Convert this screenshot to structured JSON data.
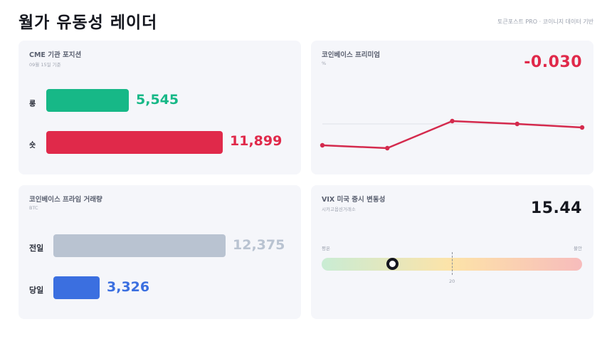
{
  "header": {
    "title": "월가 유동성 레이더",
    "source": "토큰포스트 PRO · 코이니지 데이터 기반"
  },
  "cme": {
    "title": "CME 기관 포지션",
    "date": "09월 15일 기준",
    "max": 12000,
    "rows": [
      {
        "label": "롱",
        "value": 5545,
        "display": "5,545",
        "color": "#17b887"
      },
      {
        "label": "숏",
        "value": 11899,
        "display": "11,899",
        "color": "#e0294a"
      }
    ]
  },
  "premium": {
    "title": "코인베이스 프리미엄",
    "unit": "%",
    "value": "-0.030",
    "color": "#e0294a",
    "line_color": "#d42a4d",
    "series": [
      -0.062,
      -0.066,
      -0.028,
      -0.032,
      -0.037
    ],
    "ylim": [
      -0.075,
      -0.015
    ],
    "zero_ref": -0.033
  },
  "volume": {
    "title": "코인베이스 프라임 거래량",
    "unit": "BTC",
    "max": 12375,
    "rows": [
      {
        "label": "전일",
        "value": 12375,
        "display": "12,375",
        "color": "#b9c3d1",
        "text_color": "#b9c3d1"
      },
      {
        "label": "당일",
        "value": 3326,
        "display": "3,326",
        "color": "#3b6fe0",
        "text_color": "#3b6fe0"
      }
    ]
  },
  "vix": {
    "title": "VIX 미국 증시 변동성",
    "subtitle": "시카고옵션거래소",
    "value": "15.44",
    "label_low": "평온",
    "label_high": "불안",
    "threshold": "20",
    "min": 10,
    "max": 30,
    "current": 15.44,
    "gradient": [
      "#c9ecd4",
      "#fde3a8",
      "#f7bcbc"
    ]
  }
}
